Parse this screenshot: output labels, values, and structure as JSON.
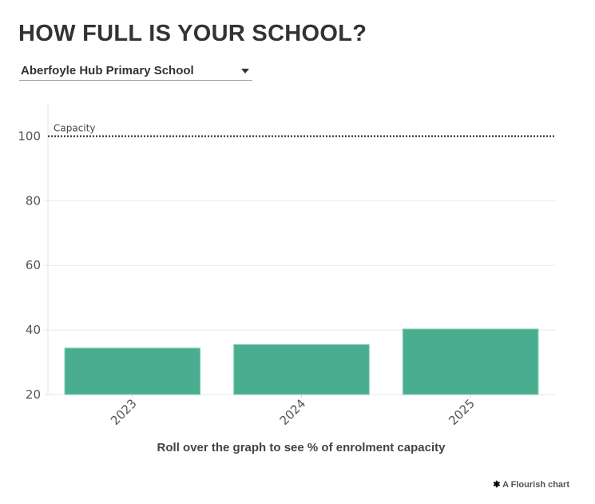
{
  "title": "HOW FULL IS YOUR SCHOOL?",
  "dropdown": {
    "selected": "Aberfoyle Hub Primary School"
  },
  "footer": {
    "credit": "A Flourish chart",
    "icon": "flourish-asterisk-icon"
  },
  "chart_data": {
    "type": "bar",
    "categories": [
      "2023",
      "2024",
      "2025"
    ],
    "values": [
      34.4,
      35.5,
      40.3
    ],
    "color": "#48ae8f",
    "ylim": [
      20,
      110
    ],
    "yticks": [
      20,
      40,
      60,
      80,
      100
    ],
    "grid": true,
    "reference_line": {
      "value": 100,
      "label": "Capacity",
      "style": "dotted"
    },
    "xlabel": "Roll over the graph to see % of enrolment capacity",
    "ylabel": ""
  }
}
